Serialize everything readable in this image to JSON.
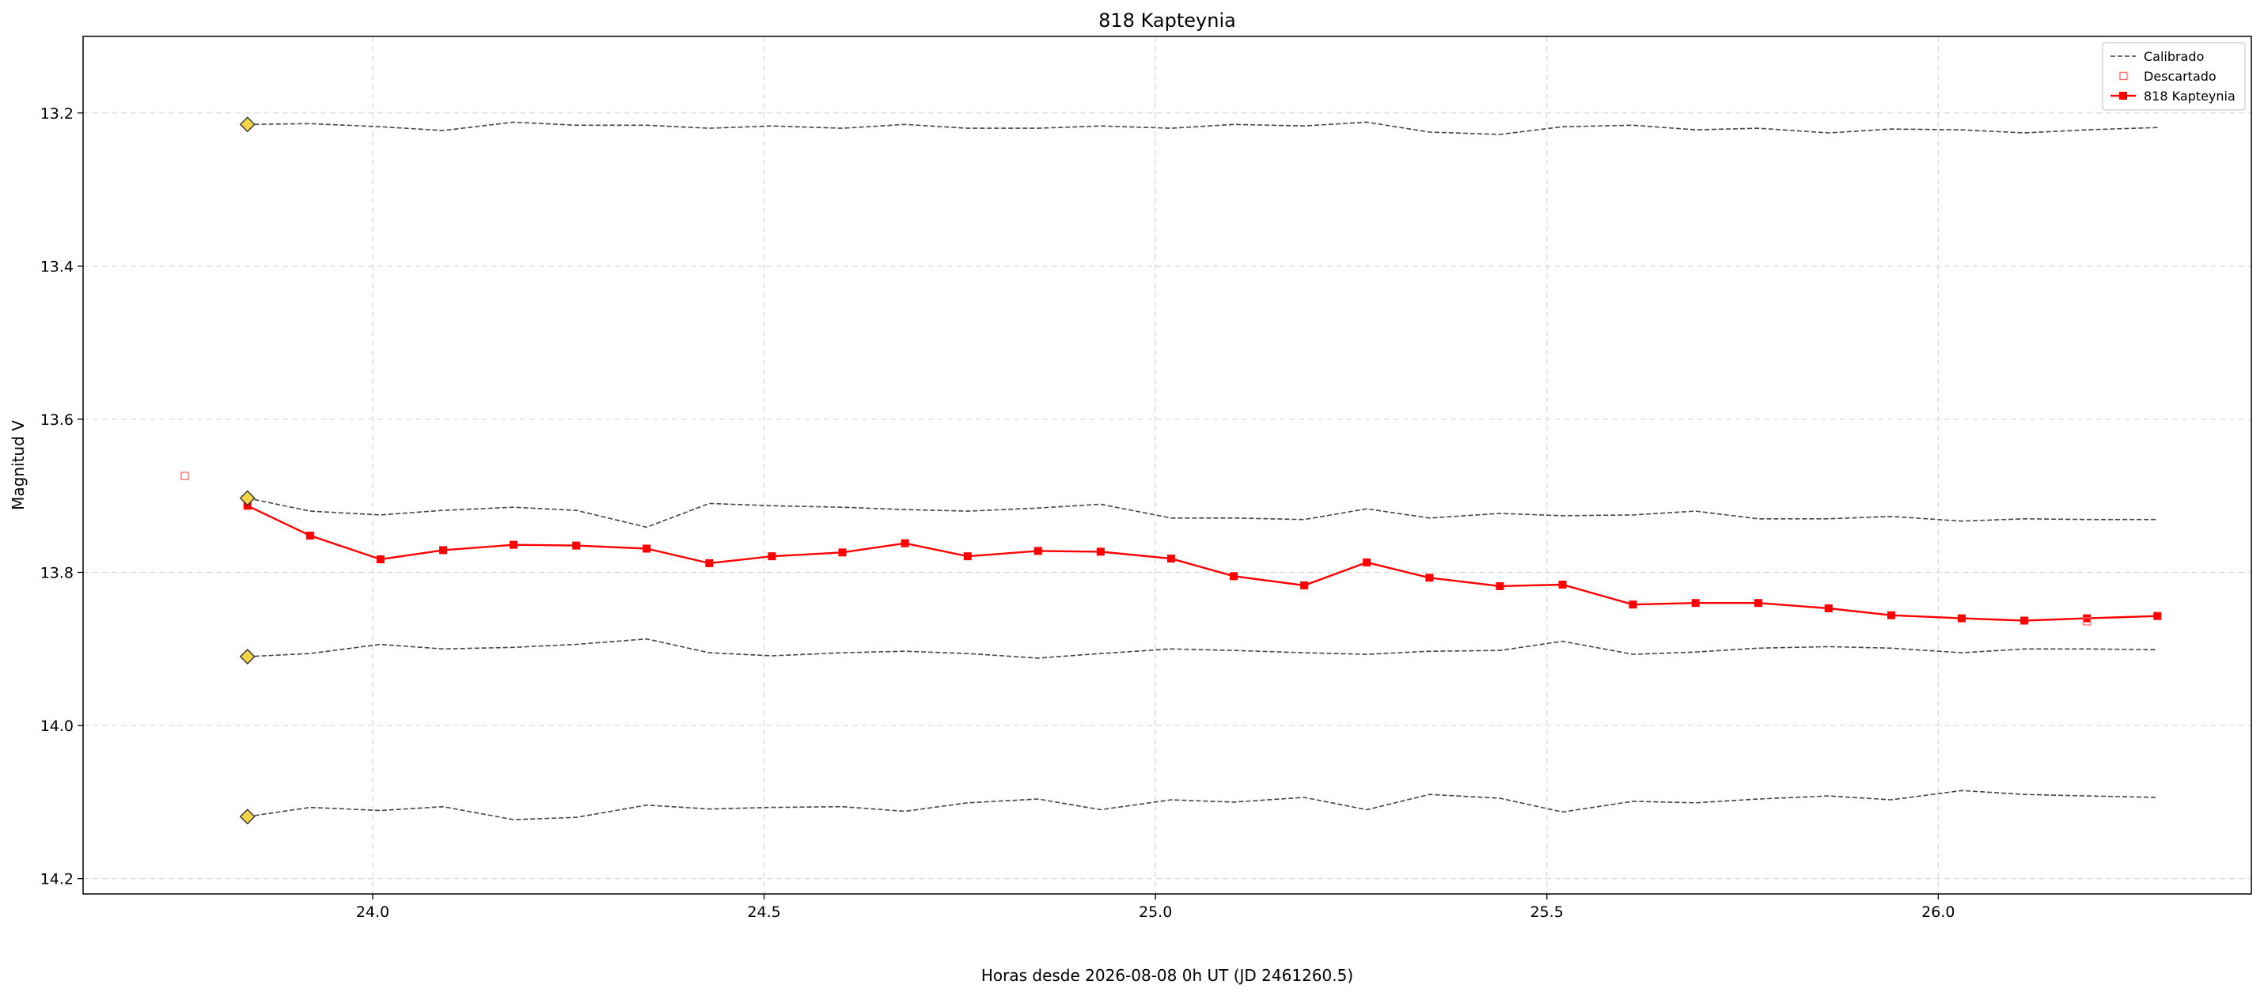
{
  "chart_data": {
    "type": "line",
    "title": "818 Kapteynia",
    "xlabel": "Horas desde 2026-08-08 0h UT (JD 2461260.5)",
    "ylabel": "Magnitud V",
    "xlim": [
      23.63,
      26.4
    ],
    "ylim": [
      14.22,
      13.1
    ],
    "y_inverted": true,
    "grid": true,
    "legend_position": "top-right",
    "x_ticks": [
      24.0,
      24.5,
      25.0,
      25.5,
      26.0
    ],
    "x_tick_labels": [
      "24.0",
      "24.5",
      "25.0",
      "25.5",
      "26.0"
    ],
    "y_ticks": [
      13.2,
      13.4,
      13.6,
      13.8,
      14.0,
      14.2
    ],
    "y_tick_labels": [
      "13.2",
      "13.4",
      "13.6",
      "13.8",
      "14.0",
      "14.2"
    ],
    "legend": [
      {
        "label": "Calibrado",
        "style": "dashed",
        "color": "#444444"
      },
      {
        "label": "Descartado",
        "style": "hollow-square",
        "color": "#ff6666"
      },
      {
        "label": "818 Kapteynia",
        "style": "line-square",
        "color": "#ff0000"
      }
    ],
    "x": [
      23.84,
      23.92,
      24.01,
      24.09,
      24.18,
      24.26,
      24.35,
      24.43,
      24.51,
      24.6,
      24.68,
      24.76,
      24.85,
      24.93,
      25.02,
      25.1,
      25.19,
      25.27,
      25.35,
      25.44,
      25.52,
      25.61,
      25.69,
      25.77,
      25.86,
      25.94,
      26.03,
      26.11,
      26.19,
      26.28
    ],
    "series": [
      {
        "name": "818 Kapteynia",
        "color": "#ff0000",
        "values": [
          13.713,
          13.752,
          13.783,
          13.771,
          13.764,
          13.765,
          13.769,
          13.788,
          13.779,
          13.774,
          13.762,
          13.779,
          13.772,
          13.773,
          13.782,
          13.805,
          13.817,
          13.787,
          13.807,
          13.818,
          13.816,
          13.842,
          13.84,
          13.84,
          13.847,
          13.856,
          13.86,
          13.863,
          13.86,
          13.857
        ]
      }
    ],
    "calibration_series": [
      {
        "values": [
          13.215,
          13.214,
          13.218,
          13.223,
          13.212,
          13.216,
          13.216,
          13.22,
          13.217,
          13.22,
          13.215,
          13.22,
          13.22,
          13.217,
          13.22,
          13.215,
          13.217,
          13.212,
          13.225,
          13.228,
          13.218,
          13.216,
          13.222,
          13.22,
          13.226,
          13.221,
          13.222,
          13.226,
          13.222,
          13.219
        ]
      },
      {
        "values": [
          13.703,
          13.72,
          13.725,
          13.719,
          13.715,
          13.719,
          13.741,
          13.71,
          13.713,
          13.715,
          13.718,
          13.72,
          13.716,
          13.711,
          13.729,
          13.729,
          13.731,
          13.717,
          13.729,
          13.723,
          13.726,
          13.725,
          13.72,
          13.73,
          13.73,
          13.727,
          13.733,
          13.73,
          13.731,
          13.731
        ]
      },
      {
        "values": [
          13.91,
          13.906,
          13.894,
          13.9,
          13.898,
          13.894,
          13.887,
          13.905,
          13.909,
          13.905,
          13.903,
          13.906,
          13.912,
          13.906,
          13.9,
          13.902,
          13.905,
          13.907,
          13.903,
          13.902,
          13.89,
          13.907,
          13.904,
          13.899,
          13.897,
          13.899,
          13.905,
          13.9,
          13.9,
          13.901
        ]
      },
      {
        "values": [
          14.119,
          14.107,
          14.111,
          14.106,
          14.123,
          14.12,
          14.104,
          14.109,
          14.107,
          14.106,
          14.112,
          14.101,
          14.096,
          14.11,
          14.097,
          14.1,
          14.094,
          14.11,
          14.09,
          14.095,
          14.113,
          14.099,
          14.101,
          14.096,
          14.092,
          14.097,
          14.085,
          14.09,
          14.092,
          14.094
        ]
      }
    ],
    "comparison_markers": {
      "x": 23.84,
      "values": [
        13.215,
        13.703,
        13.91,
        14.119
      ],
      "color": "#f5d547"
    },
    "discarded_points": [
      {
        "x": 23.76,
        "y": 13.674
      },
      {
        "x": 26.19,
        "y": 13.864
      }
    ]
  }
}
